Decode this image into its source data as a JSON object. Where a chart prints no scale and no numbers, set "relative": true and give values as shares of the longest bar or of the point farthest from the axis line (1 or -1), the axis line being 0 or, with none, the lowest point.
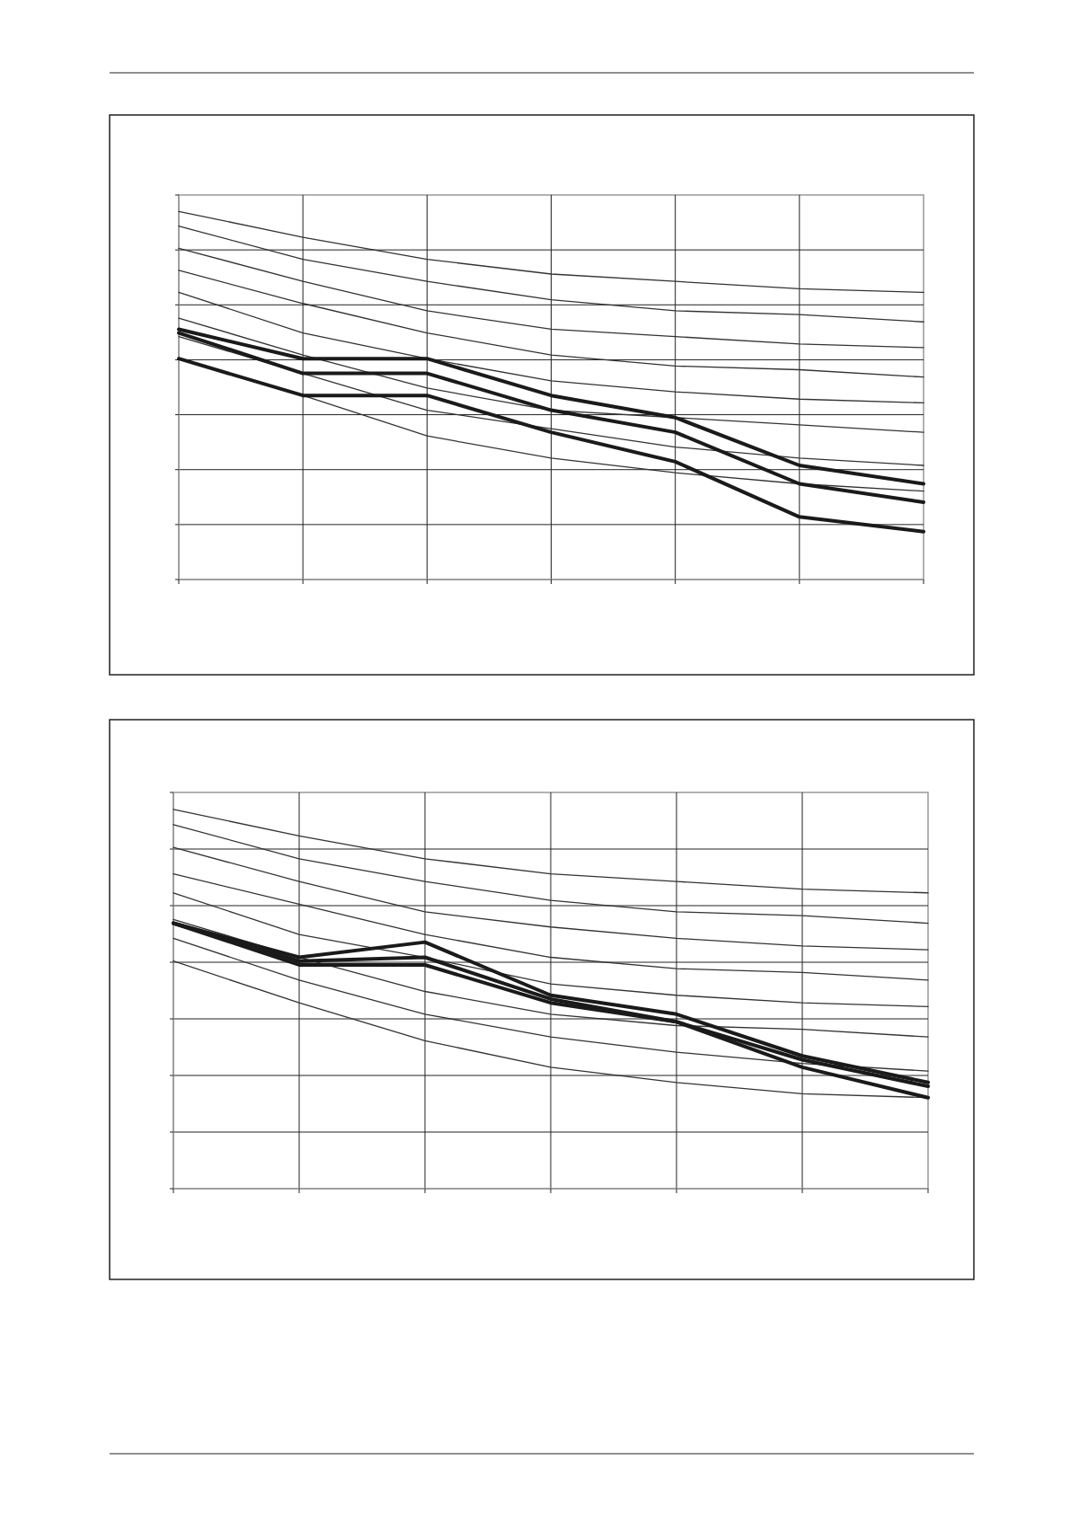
{
  "chart_data": [
    {
      "type": "line",
      "relative": true,
      "grid": true,
      "categories": [
        null,
        null,
        null,
        null,
        null,
        null,
        null
      ],
      "series": [
        {
          "color": "#333333",
          "values": [
            1,
            0.93,
            0.87,
            0.83,
            0.81,
            0.79,
            0.78
          ]
        },
        {
          "color": "#333333",
          "values": [
            0.96,
            0.87,
            0.81,
            0.76,
            0.73,
            0.72,
            0.7
          ]
        },
        {
          "color": "#333333",
          "values": [
            0.9,
            0.81,
            0.73,
            0.68,
            0.66,
            0.64,
            0.63
          ]
        },
        {
          "color": "#333333",
          "values": [
            0.84,
            0.75,
            0.67,
            0.61,
            0.58,
            0.57,
            0.55
          ]
        },
        {
          "color": "#333333",
          "values": [
            0.78,
            0.67,
            0.6,
            0.54,
            0.51,
            0.49,
            0.48
          ]
        },
        {
          "color": "#333333",
          "values": [
            0.71,
            0.61,
            0.52,
            0.46,
            0.44,
            0.42,
            0.4
          ]
        },
        {
          "color": "#333333",
          "values": [
            0.66,
            0.56,
            0.46,
            0.41,
            0.36,
            0.33,
            0.31
          ]
        },
        {
          "color": "#333333",
          "values": [
            0.6,
            0.5,
            0.39,
            0.33,
            0.29,
            0.26,
            0.24
          ]
        },
        {
          "color": "#1a1a1a",
          "values": [
            0.68,
            0.6,
            0.6,
            0.5,
            0.44,
            0.31,
            0.26
          ]
        },
        {
          "color": "#1a1a1a",
          "values": [
            0.67,
            0.56,
            0.56,
            0.46,
            0.4,
            0.26,
            0.21
          ]
        },
        {
          "color": "#1a1a1a",
          "values": [
            0.6,
            0.5,
            0.5,
            0.4,
            0.32,
            0.17,
            0.13
          ]
        }
      ]
    },
    {
      "type": "line",
      "relative": true,
      "grid": true,
      "categories": [
        null,
        null,
        null,
        null,
        null,
        null,
        null
      ],
      "series": [
        {
          "color": "#333333",
          "values": [
            1,
            0.93,
            0.87,
            0.83,
            0.81,
            0.79,
            0.78
          ]
        },
        {
          "color": "#333333",
          "values": [
            0.96,
            0.87,
            0.81,
            0.76,
            0.73,
            0.72,
            0.7
          ]
        },
        {
          "color": "#333333",
          "values": [
            0.9,
            0.81,
            0.73,
            0.69,
            0.66,
            0.64,
            0.63
          ]
        },
        {
          "color": "#333333",
          "values": [
            0.83,
            0.75,
            0.67,
            0.61,
            0.58,
            0.57,
            0.55
          ]
        },
        {
          "color": "#333333",
          "values": [
            0.78,
            0.67,
            0.61,
            0.54,
            0.51,
            0.49,
            0.48
          ]
        },
        {
          "color": "#333333",
          "values": [
            0.71,
            0.61,
            0.52,
            0.46,
            0.43,
            0.42,
            0.4
          ]
        },
        {
          "color": "#333333",
          "values": [
            0.66,
            0.55,
            0.46,
            0.4,
            0.36,
            0.33,
            0.31
          ]
        },
        {
          "color": "#333333",
          "values": [
            0.6,
            0.49,
            0.39,
            0.32,
            0.28,
            0.25,
            0.24
          ]
        },
        {
          "color": "#1a1a1a",
          "values": [
            0.7,
            0.61,
            0.65,
            0.51,
            0.46,
            0.35,
            0.28
          ]
        },
        {
          "color": "#1a1a1a",
          "values": [
            0.7,
            0.6,
            0.61,
            0.5,
            0.44,
            0.34,
            0.27
          ]
        },
        {
          "color": "#1a1a1a",
          "values": [
            0.7,
            0.59,
            0.59,
            0.49,
            0.44,
            0.32,
            0.24
          ]
        }
      ]
    }
  ]
}
